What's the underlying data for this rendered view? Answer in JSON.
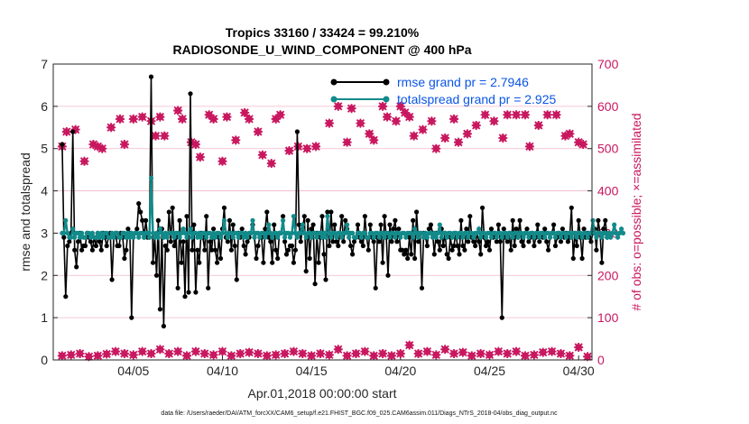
{
  "chart_data": {
    "type": "line",
    "title_line1": "Tropics 33160 / 33424 = 99.210%",
    "title_line2": "RADIOSONDE_U_WIND_COMPONENT @ 400 hPa",
    "xlabel": "Apr.01,2018 00:00:00 start",
    "ylabel_left": "rmse and totalspread",
    "ylabel_right": "# of obs: o=possible; ×=assimilated",
    "footer": "data file: /Users/raeder/DAI/ATM_forcXX/CAM6_setup/f.e21.FHIST_BGC.f09_025.CAM6assim.011/Diags_NTrS_2018-04/obs_diag_output.nc",
    "xlim": [
      0.5,
      30.75
    ],
    "ylim_left": [
      0,
      7
    ],
    "ylim_right": [
      0,
      700
    ],
    "x_ticks": [
      {
        "value": 5,
        "label": "04/05"
      },
      {
        "value": 10,
        "label": "04/10"
      },
      {
        "value": 15,
        "label": "04/15"
      },
      {
        "value": 20,
        "label": "04/20"
      },
      {
        "value": 25,
        "label": "04/25"
      },
      {
        "value": 30,
        "label": "04/30"
      }
    ],
    "y_ticks_left": [
      0,
      1,
      2,
      3,
      4,
      5,
      6,
      7
    ],
    "y_ticks_right": [
      0,
      100,
      200,
      300,
      400,
      500,
      600,
      700
    ],
    "colors": {
      "rmse": "#000000",
      "spread": "#128a8a",
      "obs": "#c8175f",
      "legend_text": "#0a55e6",
      "grid": "#f0b8c8"
    },
    "series": [
      {
        "name": "rmse grand pr = 2.7946",
        "axis": "left",
        "color": "#000000",
        "values": [
          5.1,
          2.9,
          1.5,
          2.7,
          2.8,
          3.0,
          5.4,
          2.6,
          2.2,
          2.8,
          3.0,
          2.6,
          2.7,
          2.7,
          3.0,
          2.9,
          2.8,
          2.6,
          2.9,
          2.7,
          3.0,
          2.8,
          2.6,
          3.0,
          2.9,
          2.7,
          2.9,
          3.0,
          1.9,
          2.9,
          3.0,
          2.7,
          2.7,
          3.0,
          2.9,
          2.4,
          2.6,
          3.1,
          3.0,
          1.0,
          2.9,
          3.0,
          3.1,
          3.7,
          3.5,
          3.3,
          2.9,
          3.3,
          2.9,
          2.9,
          6.7,
          2.3,
          2.9,
          2.0,
          3.3,
          1.2,
          3.1,
          0.8,
          2.7,
          2.6,
          3.5,
          2.8,
          3.6,
          2.7,
          2.9,
          1.7,
          3.3,
          2.3,
          2.8,
          1.5,
          3.4,
          1.6,
          6.3,
          2.6,
          3.2,
          1.6,
          2.6,
          2.3,
          3.0,
          2.9,
          2.6,
          3.4,
          1.7,
          2.8,
          2.6,
          3.1,
          2.6,
          2.3,
          2.9,
          2.4,
          3.1,
          3.6,
          2.9,
          2.8,
          3.3,
          2.6,
          3.2,
          2.7,
          1.9,
          3.0,
          2.9,
          3.1,
          2.7,
          2.5,
          2.8,
          2.9,
          3.0,
          3.2,
          2.9,
          2.4,
          2.7,
          2.9,
          2.9,
          2.3,
          3.1,
          3.5,
          2.9,
          2.8,
          2.3,
          3.2,
          2.6,
          2.4,
          3.0,
          3.0,
          3.4,
          2.8,
          2.5,
          2.6,
          2.7,
          2.7,
          2.3,
          2.6,
          5.4,
          3.2,
          2.8,
          3.1,
          3.4,
          2.1,
          3.3,
          2.4,
          3.1,
          3.2,
          1.8,
          3.0,
          2.3,
          2.9,
          3.4,
          2.5,
          1.9,
          3.5,
          2.7,
          3.5,
          2.8,
          3.2,
          2.8,
          2.7,
          3.0,
          3.4,
          2.8,
          3.3,
          3.1,
          3.0,
          2.7,
          2.5,
          2.8,
          2.9,
          3.2,
          2.9,
          2.8,
          2.7,
          3.4,
          2.9,
          2.6,
          3.2,
          2.9,
          2.8,
          1.7,
          2.9,
          2.8,
          3.2,
          2.3,
          3.4,
          2.9,
          2.0,
          3.2,
          2.8,
          3.1,
          3.3,
          2.8,
          3.1,
          2.6,
          2.6,
          2.5,
          2.6,
          2.4,
          2.9,
          2.5,
          3.3,
          2.4,
          3.5,
          2.8,
          3.0,
          1.7,
          3.0,
          2.9,
          2.7,
          3.1,
          3.2,
          3.0,
          2.5,
          3.0,
          2.8,
          2.6,
          3.1,
          2.7,
          3.0,
          2.5,
          2.4,
          2.9,
          2.6,
          2.7,
          3.0,
          2.7,
          2.5,
          3.3,
          2.7,
          2.6,
          3.1,
          2.8,
          3.4,
          2.9,
          2.8,
          2.7,
          3.0,
          2.8,
          2.5,
          3.6,
          2.9,
          2.7,
          2.8,
          2.6,
          3.1,
          2.9,
          3.0,
          2.8,
          3.2,
          2.8,
          1.0,
          3.1,
          2.9,
          2.8,
          3.0,
          2.6,
          3.3,
          2.7,
          3.1,
          2.9,
          3.3,
          2.8,
          2.7,
          3.0,
          3.1,
          2.8,
          2.9,
          3.0,
          2.7,
          2.9,
          3.2,
          2.8,
          3.0,
          2.9,
          3.1,
          2.8,
          2.6,
          2.9,
          3.0,
          3.2,
          2.7,
          2.9,
          3.0,
          2.8,
          3.1,
          2.9,
          3.0,
          2.8,
          2.9,
          3.6,
          2.4,
          3.0,
          2.7,
          3.3,
          2.9,
          2.4,
          3.1,
          2.9,
          3.0,
          2.9,
          2.8,
          3.0,
          3.1,
          2.6,
          3.3,
          3.0,
          2.3,
          3.1,
          3.3,
          2.9
        ],
        "note": "rmse values at 6-hourly intervals starting at day 1"
      },
      {
        "name": "totalspread grand pr = 2.925",
        "axis": "left",
        "color": "#128a8a",
        "values": [
          3.0,
          3.0,
          3.3,
          3.0,
          2.9,
          2.9,
          3.1,
          2.9,
          3.0,
          3.0,
          2.9,
          3.0,
          2.9,
          2.9,
          3.0,
          3.0,
          2.9,
          3.0,
          2.9,
          2.9,
          3.0,
          2.9,
          3.0,
          2.9,
          3.0,
          3.0,
          2.9,
          2.9,
          3.0,
          2.9,
          3.0,
          3.0,
          2.9,
          2.9,
          3.0,
          3.0,
          2.9,
          3.0,
          2.9,
          3.0,
          2.9,
          3.0,
          3.0,
          2.9,
          3.0,
          3.0,
          2.9,
          3.0,
          3.0,
          2.9,
          4.3,
          3.0,
          2.9,
          3.0,
          2.9,
          3.1,
          3.0,
          2.9,
          3.0,
          2.9,
          3.0,
          3.0,
          3.0,
          2.9,
          3.0,
          3.0,
          2.9,
          3.0,
          3.1,
          3.0,
          2.9,
          3.0,
          3.1,
          2.9,
          3.0,
          3.0,
          2.9,
          3.0,
          2.9,
          3.0,
          3.0,
          2.9,
          3.0,
          3.0,
          2.9,
          3.0,
          2.9,
          3.0,
          3.0,
          2.9,
          3.0,
          3.3,
          3.0,
          2.9,
          3.0,
          3.0,
          2.9,
          3.0,
          3.0,
          2.9,
          3.0,
          3.0,
          2.9,
          3.0,
          2.9,
          3.0,
          3.0,
          3.3,
          2.9,
          3.0,
          3.0,
          2.9,
          3.0,
          3.0,
          2.9,
          3.0,
          3.2,
          3.0,
          2.9,
          3.0,
          3.0,
          2.9,
          3.0,
          3.0,
          3.3,
          2.9,
          3.0,
          3.0,
          2.9,
          3.0,
          3.4,
          3.0,
          2.9,
          3.0,
          3.0,
          3.2,
          3.0,
          2.9,
          3.0,
          3.0,
          2.9,
          3.0,
          3.0,
          2.9,
          3.0,
          3.0,
          2.9,
          3.0,
          2.9,
          3.4,
          3.0,
          2.9,
          3.0,
          3.0,
          2.9,
          3.0,
          3.0,
          2.9,
          3.0,
          3.0,
          3.2,
          2.9,
          3.0,
          3.0,
          2.9,
          2.9,
          3.0,
          3.0,
          2.9,
          3.0,
          3.0,
          2.9,
          2.9,
          3.0,
          3.0,
          2.9,
          3.0,
          3.0,
          2.9,
          3.0,
          3.0,
          2.9,
          3.0,
          3.0,
          2.9,
          3.0,
          3.0,
          2.9,
          3.0,
          3.0,
          2.9,
          3.0,
          3.0,
          2.9,
          3.0,
          3.0,
          3.0,
          2.9,
          3.1,
          3.0,
          2.9,
          3.0,
          3.0,
          2.9,
          3.0,
          2.9,
          3.0,
          3.0,
          2.9,
          3.0,
          2.9,
          3.0,
          3.2,
          2.9,
          3.0,
          3.0,
          2.9,
          3.0,
          3.0,
          2.9,
          3.0,
          3.0,
          2.9,
          3.0,
          3.0,
          2.9,
          3.0,
          3.0,
          2.9,
          3.0,
          3.0,
          2.9,
          3.0,
          3.0,
          3.1,
          2.9,
          3.0,
          3.0,
          2.9,
          3.0,
          3.0,
          2.9,
          3.0,
          3.0,
          2.9,
          3.0,
          3.0,
          2.9,
          3.0,
          3.0,
          2.9,
          3.0,
          3.0,
          2.9,
          3.0,
          3.0,
          2.9,
          3.0,
          3.0,
          2.9,
          3.0,
          3.0,
          2.9,
          3.0,
          3.0,
          2.9,
          3.0,
          3.0,
          2.9,
          3.0,
          3.0,
          2.9,
          3.0,
          3.0,
          2.9,
          3.0,
          3.0,
          2.9,
          3.0,
          3.0,
          2.9,
          3.0,
          3.0,
          2.9,
          3.0,
          3.0,
          2.9,
          3.0,
          3.0,
          2.9,
          3.0,
          3.0,
          2.9,
          3.0,
          3.0,
          2.9,
          3.0,
          3.0,
          3.3,
          3.0,
          2.9,
          3.0,
          3.0,
          2.9,
          3.0,
          3.0,
          2.9,
          3.0,
          2.9,
          3.0,
          3.2,
          3.0,
          2.9,
          3.0,
          3.1,
          3.0
        ],
        "note": "spread values at 6-hourly intervals starting at day 1"
      }
    ],
    "obs_high_x": [
      1.0,
      1.25,
      1.75,
      2.25,
      2.75,
      3.0,
      3.25,
      3.75,
      4.25,
      4.5,
      5.0,
      5.5,
      6.0,
      6.25,
      6.5,
      6.75,
      7.5,
      7.75,
      8.25,
      8.5,
      8.75,
      9.25,
      9.5,
      10.0,
      10.25,
      10.75,
      11.25,
      11.5,
      12.0,
      12.25,
      12.75,
      13.0,
      13.25,
      13.75,
      14.25,
      14.75,
      15.25,
      16.0,
      16.5,
      17.0,
      17.25,
      17.75,
      18.25,
      18.5,
      19.0,
      19.25,
      19.75,
      20.0,
      20.25,
      20.5,
      20.75,
      21.25,
      21.75,
      22.0,
      22.5,
      23.0,
      23.25,
      23.75,
      24.25,
      24.75,
      25.25,
      25.75,
      26.0,
      26.5,
      27.0,
      27.25,
      27.75,
      28.25,
      28.75,
      29.25,
      29.5,
      30.0,
      30.25
    ],
    "obs_high_y": [
      505,
      540,
      545,
      470,
      510,
      505,
      500,
      550,
      570,
      510,
      570,
      575,
      565,
      530,
      575,
      530,
      590,
      570,
      515,
      510,
      480,
      580,
      570,
      470,
      575,
      520,
      585,
      570,
      540,
      485,
      465,
      570,
      580,
      495,
      505,
      500,
      505,
      560,
      600,
      515,
      595,
      560,
      535,
      520,
      600,
      575,
      565,
      600,
      585,
      575,
      530,
      545,
      565,
      500,
      525,
      570,
      515,
      535,
      555,
      580,
      565,
      525,
      580,
      580,
      580,
      505,
      555,
      580,
      580,
      530,
      535,
      515,
      510
    ],
    "obs_low_x": [
      1.0,
      1.5,
      2.0,
      2.5,
      3.0,
      3.5,
      4.0,
      4.5,
      5.0,
      5.5,
      6.0,
      6.5,
      7.0,
      7.5,
      8.0,
      8.5,
      9.0,
      9.5,
      10.0,
      10.5,
      11.0,
      11.5,
      12.0,
      12.5,
      13.0,
      13.5,
      14.0,
      14.5,
      15.0,
      15.5,
      16.0,
      16.5,
      17.0,
      17.5,
      18.0,
      18.5,
      19.0,
      19.5,
      20.0,
      20.5,
      21.0,
      21.5,
      22.0,
      22.5,
      23.0,
      23.5,
      24.0,
      24.5,
      25.0,
      25.5,
      26.0,
      26.5,
      27.0,
      27.5,
      28.0,
      28.5,
      29.0,
      29.5,
      30.0,
      30.5
    ],
    "obs_low_y": [
      10,
      12,
      15,
      8,
      10,
      14,
      20,
      15,
      12,
      20,
      15,
      25,
      15,
      20,
      10,
      20,
      15,
      12,
      20,
      10,
      15,
      18,
      15,
      10,
      12,
      15,
      20,
      15,
      10,
      15,
      12,
      25,
      10,
      15,
      20,
      10,
      15,
      10,
      15,
      35,
      15,
      20,
      12,
      25,
      15,
      18,
      10,
      15,
      12,
      20,
      15,
      20,
      10,
      12,
      18,
      20,
      15,
      10,
      30,
      8
    ]
  }
}
